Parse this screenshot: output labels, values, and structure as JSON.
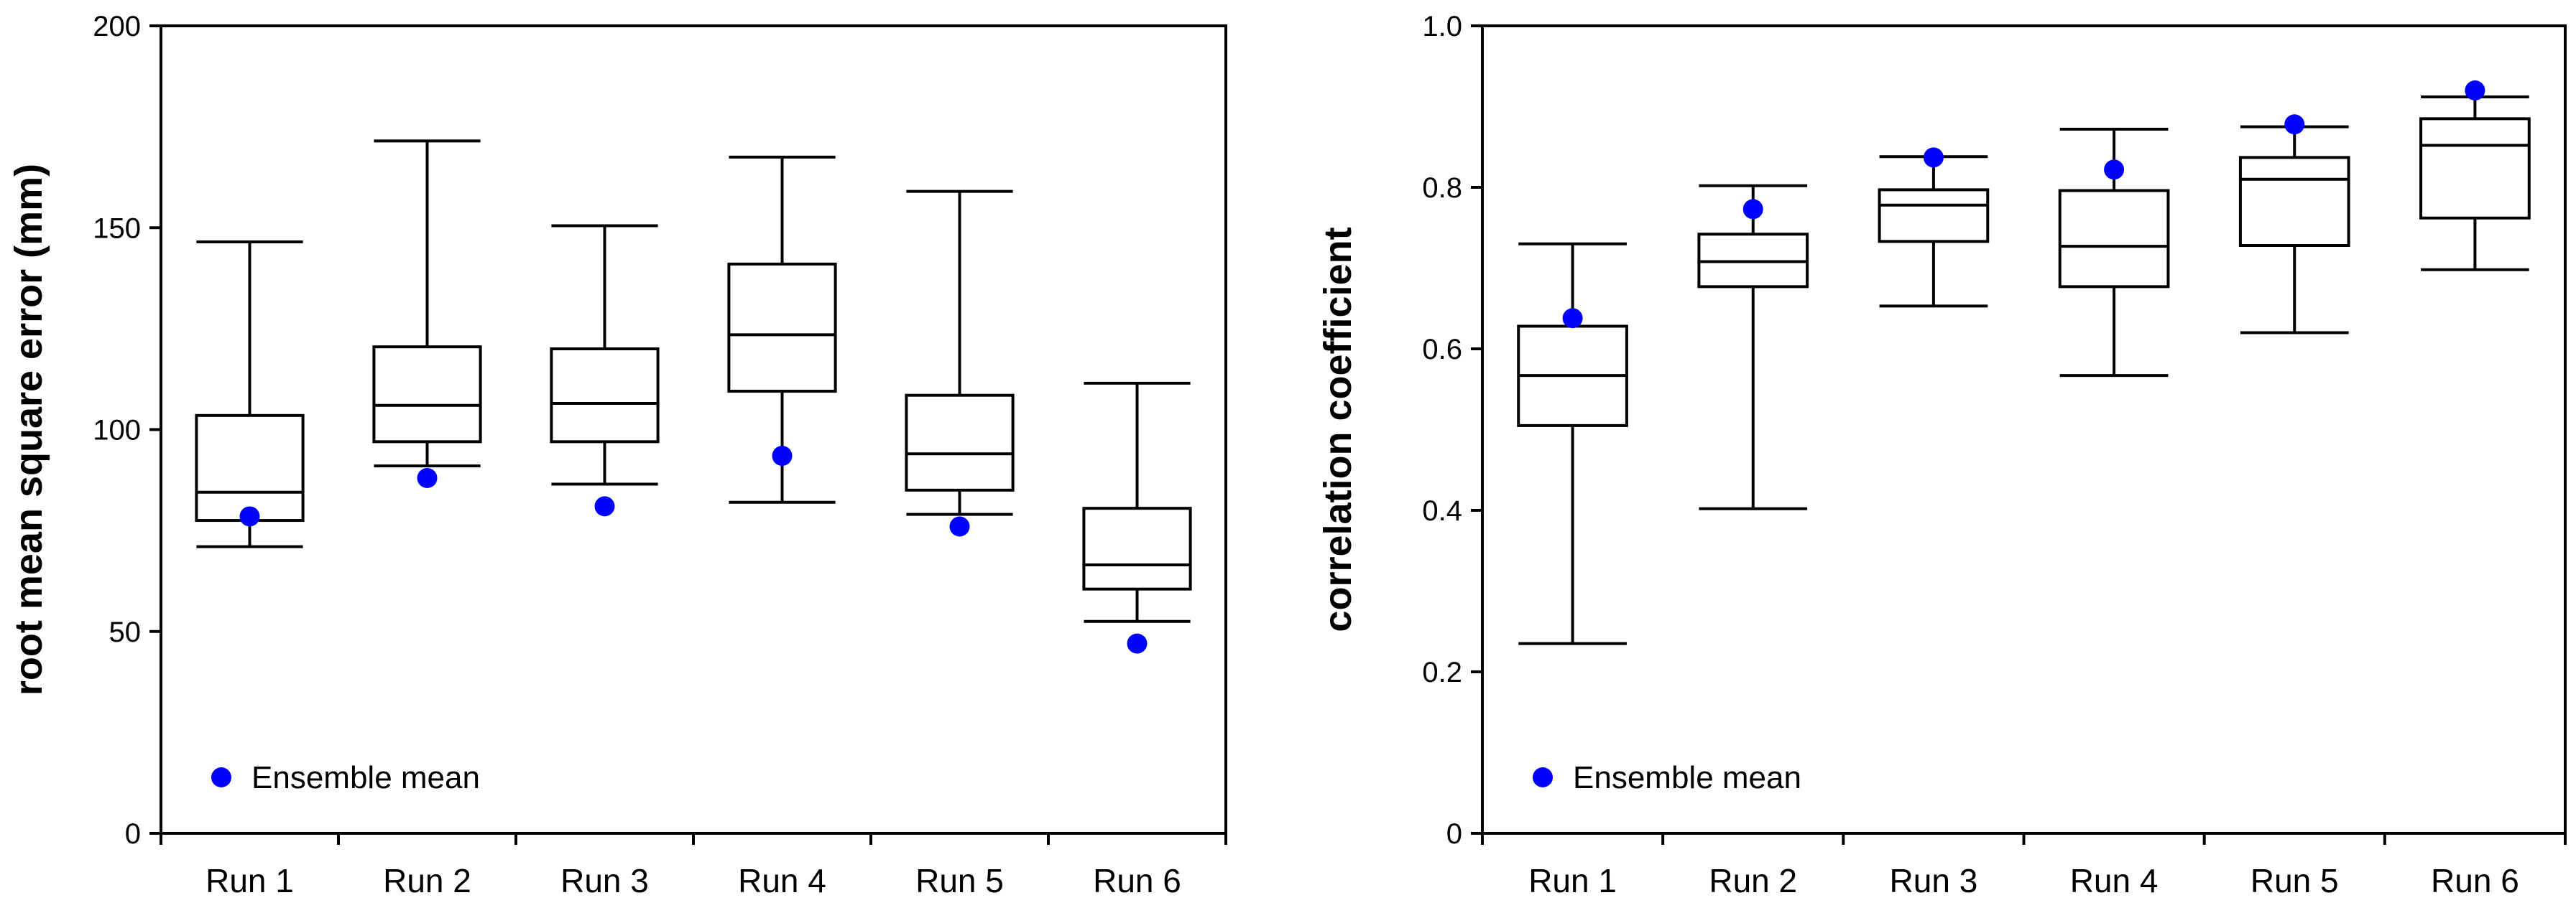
{
  "chart_data": [
    {
      "type": "box",
      "title": "",
      "xlabel": "",
      "ylabel": "root mean square error (mm)",
      "ylim": [
        0,
        200
      ],
      "yticks": [
        0,
        50,
        100,
        150,
        200
      ],
      "ytick_labels": [
        "0",
        "50",
        "100",
        "150",
        "200"
      ],
      "categories": [
        "Run 1",
        "Run 2",
        "Run 3",
        "Run 4",
        "Run 5",
        "Run 6"
      ],
      "boxes": [
        {
          "whisker_low": 71,
          "q1": 77.5,
          "median": 84.5,
          "q3": 103.5,
          "whisker_high": 146.5
        },
        {
          "whisker_low": 91,
          "q1": 97,
          "median": 106,
          "q3": 120.5,
          "whisker_high": 171.5
        },
        {
          "whisker_low": 86.5,
          "q1": 97,
          "median": 106.5,
          "q3": 120,
          "whisker_high": 150.5
        },
        {
          "whisker_low": 82,
          "q1": 109.5,
          "median": 123.5,
          "q3": 141,
          "whisker_high": 167.5
        },
        {
          "whisker_low": 79,
          "q1": 85,
          "median": 94,
          "q3": 108.5,
          "whisker_high": 159
        },
        {
          "whisker_low": 52.5,
          "q1": 60.5,
          "median": 66.5,
          "q3": 80.5,
          "whisker_high": 111.5
        }
      ],
      "ensemble_mean": [
        78.5,
        88,
        81,
        93.5,
        76,
        47
      ],
      "legend": {
        "label": "Ensemble mean",
        "position": "bottom-left",
        "color": "#0000ff"
      }
    },
    {
      "type": "box",
      "title": "",
      "xlabel": "",
      "ylabel": "correlation coefficient",
      "ylim": [
        0,
        1.0
      ],
      "yticks": [
        0,
        0.2,
        0.4,
        0.6,
        0.8,
        1.0
      ],
      "ytick_labels": [
        "0",
        "0.2",
        "0.4",
        "0.6",
        "0.8",
        "1.0"
      ],
      "categories": [
        "Run 1",
        "Run 2",
        "Run 3",
        "Run 4",
        "Run 5",
        "Run 6"
      ],
      "boxes": [
        {
          "whisker_low": 0.235,
          "q1": 0.505,
          "median": 0.567,
          "q3": 0.628,
          "whisker_high": 0.73
        },
        {
          "whisker_low": 0.402,
          "q1": 0.677,
          "median": 0.708,
          "q3": 0.742,
          "whisker_high": 0.802
        },
        {
          "whisker_low": 0.653,
          "q1": 0.733,
          "median": 0.778,
          "q3": 0.797,
          "whisker_high": 0.838
        },
        {
          "whisker_low": 0.567,
          "q1": 0.677,
          "median": 0.727,
          "q3": 0.796,
          "whisker_high": 0.872
        },
        {
          "whisker_low": 0.62,
          "q1": 0.728,
          "median": 0.81,
          "q3": 0.837,
          "whisker_high": 0.875
        },
        {
          "whisker_low": 0.698,
          "q1": 0.762,
          "median": 0.852,
          "q3": 0.885,
          "whisker_high": 0.912
        }
      ],
      "ensemble_mean": [
        0.638,
        0.773,
        0.837,
        0.822,
        0.878,
        0.92
      ],
      "legend": {
        "label": "Ensemble mean",
        "position": "bottom-left",
        "color": "#0000ff"
      }
    }
  ]
}
